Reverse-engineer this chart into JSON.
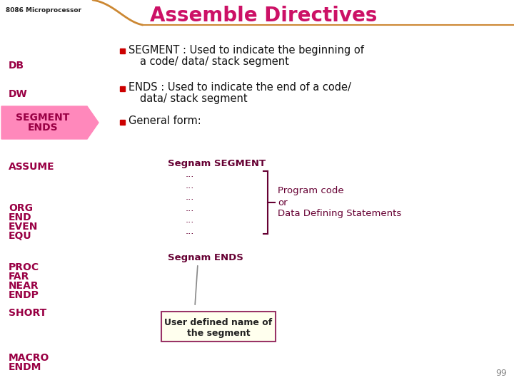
{
  "bg_color": "#ffffff",
  "header_text": "Assemble Directives",
  "header_color": "#cc1166",
  "header_curve_color": "#cc8833",
  "watermark_text": "8086 Microprocessor",
  "highlight_bg": "#ff88bb",
  "sidebar_text_color": "#990044",
  "bullet_color": "#cc0000",
  "bullet1_line1": "SEGMENT : Used to indicate the beginning of",
  "bullet1_line2": "a code/ data/ stack segment",
  "bullet2_line1": "ENDS : Used to indicate the end of a code/",
  "bullet2_line2": "data/ stack segment",
  "bullet3": "General form:",
  "code_line1": "Segnam SEGMENT",
  "code_dots": [
    "...",
    "...",
    "...",
    "...",
    "...",
    "..."
  ],
  "code_line2": "Segnam ENDS",
  "code_color": "#660033",
  "bracket_color": "#660033",
  "side_text_color": "#660033",
  "box_text_line1": "User defined name of",
  "box_text_line2": "the segment",
  "box_bg": "#ffffee",
  "box_border": "#993366",
  "page_num": "99",
  "sidebar_items_order": [
    "DB",
    "DW",
    "SEGMENT\nENDS",
    "ASSUME",
    "ORG\nEND\nEVEN\nEQU",
    "PROC\nFAR\nNEAR\nENDP",
    "SHORT",
    "MACRO\nENDM"
  ],
  "sidebar_y": [
    455,
    415,
    368,
    313,
    255,
    172,
    108,
    45
  ]
}
